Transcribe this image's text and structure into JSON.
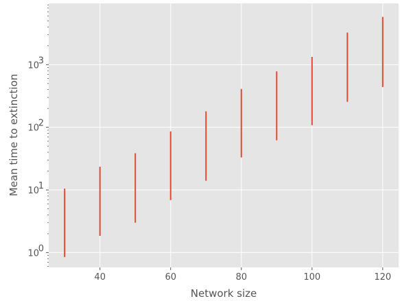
{
  "chart_data": {
    "type": "errorbar",
    "title": "",
    "xlabel": "Network size",
    "ylabel": "Mean time to extinction",
    "x_scale": "linear",
    "y_scale": "log",
    "xlim": [
      25.5,
      124.5
    ],
    "ylim": [
      0.58,
      9500
    ],
    "x_ticks": [
      40,
      60,
      80,
      100,
      120
    ],
    "y_ticks": [
      {
        "value": 1,
        "base": "10",
        "exp": "0"
      },
      {
        "value": 10,
        "base": "10",
        "exp": "1"
      },
      {
        "value": 100,
        "base": "10",
        "exp": "2"
      },
      {
        "value": 1000,
        "base": "10",
        "exp": "3"
      }
    ],
    "grid": true,
    "background_color": "#e5e5e5",
    "grid_color": "#ffffff",
    "bar_color": "#e24a33",
    "series": [
      {
        "x": [
          30,
          40,
          50,
          60,
          70,
          80,
          90,
          100,
          110,
          120
        ],
        "y_low": [
          0.85,
          1.85,
          3.0,
          6.9,
          14,
          33,
          62,
          108,
          255,
          440
        ],
        "y_high": [
          10.5,
          23.5,
          38.5,
          86,
          180,
          410,
          780,
          1330,
          3250,
          5800
        ]
      }
    ]
  }
}
